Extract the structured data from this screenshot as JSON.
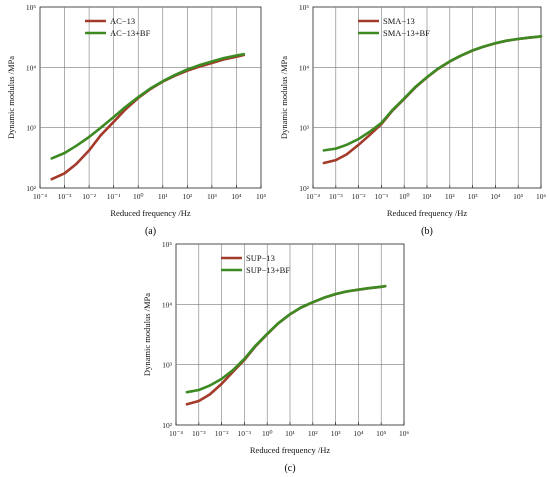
{
  "chart_data": [
    {
      "type": "line",
      "panel_label": "(a)",
      "xscale": "log",
      "yscale": "log",
      "xlabel": "Reduced frequency /Hz",
      "ylabel": "Dynamic modulus /MPa",
      "xlim": [
        0.0001,
        100000
      ],
      "ylim": [
        100,
        100000
      ],
      "x_ticks": [
        "10⁻⁴",
        "10⁻³",
        "10⁻²",
        "10⁻¹",
        "10⁰",
        "10¹",
        "10²",
        "10³",
        "10⁴",
        "10⁵"
      ],
      "y_ticks": [
        "10²",
        "10³",
        "10⁴",
        "10⁵"
      ],
      "grid": true,
      "legend_position": "top-left",
      "series": [
        {
          "name": "AC−13",
          "color": "#a33a2a",
          "x": [
            0.0003,
            0.001,
            0.003,
            0.01,
            0.03,
            0.1,
            0.3,
            1,
            3,
            10,
            30,
            100,
            300,
            1000,
            3000,
            10000,
            20000
          ],
          "y": [
            140,
            175,
            250,
            420,
            750,
            1250,
            2000,
            3100,
            4300,
            5800,
            7200,
            8800,
            10200,
            11800,
            13500,
            15000,
            16000
          ]
        },
        {
          "name": "AC−13+BF",
          "color": "#3d8a22",
          "x": [
            0.0003,
            0.001,
            0.003,
            0.01,
            0.03,
            0.1,
            0.3,
            1,
            3,
            10,
            30,
            100,
            300,
            1000,
            3000,
            10000,
            20000
          ],
          "y": [
            310,
            380,
            500,
            700,
            1000,
            1500,
            2200,
            3200,
            4400,
            5900,
            7400,
            9200,
            10800,
            12500,
            14200,
            15700,
            16500
          ]
        }
      ]
    },
    {
      "type": "line",
      "panel_label": "(b)",
      "xscale": "log",
      "yscale": "log",
      "xlabel": "Reduced frequency /Hz",
      "ylabel": "Dynamic modulus /MPa",
      "xlim": [
        0.0001,
        1000000
      ],
      "ylim": [
        100,
        100000
      ],
      "x_ticks": [
        "10⁻⁴",
        "10⁻³",
        "10⁻²",
        "10⁻¹",
        "10⁰",
        "10¹",
        "10²",
        "10³",
        "10⁴",
        "10⁵",
        "10⁶"
      ],
      "y_ticks": [
        "10²",
        "10³",
        "10⁴",
        "10⁵"
      ],
      "grid": true,
      "legend_position": "top-left",
      "series": [
        {
          "name": "SMA−13",
          "color": "#a33a2a",
          "x": [
            0.0003,
            0.001,
            0.003,
            0.01,
            0.03,
            0.1,
            0.3,
            1,
            3,
            10,
            30,
            100,
            300,
            1000,
            3000,
            10000,
            30000,
            100000,
            300000,
            1000000
          ],
          "y": [
            260,
            290,
            360,
            520,
            750,
            1150,
            1900,
            3000,
            4600,
            6800,
            9400,
            12500,
            15500,
            19000,
            22000,
            25000,
            27500,
            29500,
            31000,
            32500
          ]
        },
        {
          "name": "SMA−13+BF",
          "color": "#3d8a22",
          "x": [
            0.0003,
            0.001,
            0.003,
            0.01,
            0.03,
            0.1,
            0.3,
            1,
            3,
            10,
            30,
            100,
            300,
            1000,
            3000,
            10000,
            30000,
            100000,
            300000,
            1000000
          ],
          "y": [
            420,
            450,
            520,
            650,
            850,
            1200,
            1950,
            3050,
            4700,
            6900,
            9500,
            12600,
            15600,
            19100,
            22100,
            25100,
            27600,
            29600,
            31100,
            32600
          ]
        }
      ]
    },
    {
      "type": "line",
      "panel_label": "(c)",
      "xscale": "log",
      "yscale": "log",
      "xlabel": "Reduced frequency /Hz",
      "ylabel": "Dynamic modulus /MPa",
      "xlim": [
        0.0001,
        1000000
      ],
      "ylim": [
        100,
        100000
      ],
      "x_ticks": [
        "10⁻⁴",
        "10⁻³",
        "10⁻²",
        "10⁻¹",
        "10⁰",
        "10¹",
        "10²",
        "10³",
        "10⁴",
        "10⁵",
        "10⁶"
      ],
      "y_ticks": [
        "10²",
        "10³",
        "10⁴",
        "10⁵"
      ],
      "grid": true,
      "legend_position": "top-left",
      "series": [
        {
          "name": "SUP−13",
          "color": "#a33a2a",
          "x": [
            0.0003,
            0.001,
            0.003,
            0.01,
            0.03,
            0.1,
            0.3,
            1,
            3,
            10,
            30,
            100,
            300,
            1000,
            3000,
            10000,
            30000,
            100000,
            150000
          ],
          "y": [
            220,
            250,
            320,
            480,
            750,
            1200,
            2000,
            3200,
            4800,
            6800,
            8800,
            10800,
            12800,
            14800,
            16300,
            17500,
            18500,
            19500,
            20000
          ]
        },
        {
          "name": "SUP−13+BF",
          "color": "#3d8a22",
          "x": [
            0.0003,
            0.001,
            0.003,
            0.01,
            0.03,
            0.1,
            0.3,
            1,
            3,
            10,
            30,
            100,
            300,
            1000,
            3000,
            10000,
            30000,
            100000,
            150000
          ],
          "y": [
            350,
            380,
            450,
            580,
            800,
            1250,
            2050,
            3250,
            4850,
            6850,
            8850,
            10850,
            12850,
            14850,
            16350,
            17550,
            18550,
            19550,
            20050
          ]
        }
      ]
    }
  ]
}
